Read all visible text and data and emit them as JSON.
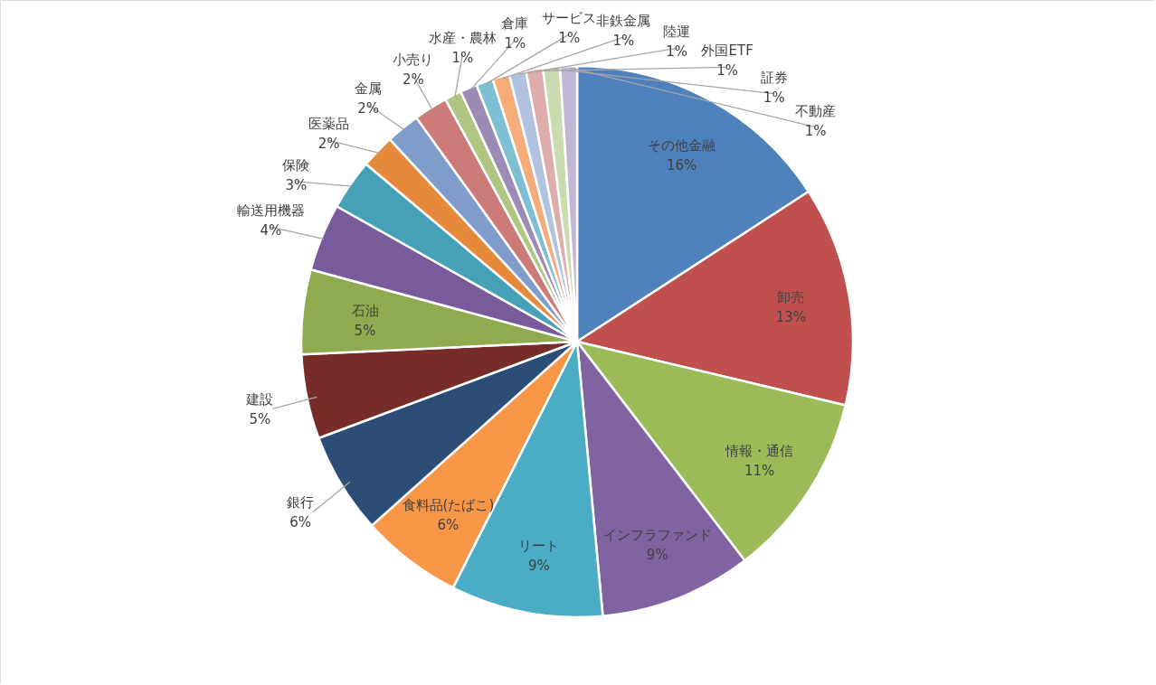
{
  "chart_data": {
    "type": "pie",
    "categories": [
      "その他金融",
      "卸売",
      "情報・通信",
      "インフラファンド",
      "リート",
      "食料品(たばこ)",
      "銀行",
      "建設",
      "石油",
      "輸送用機器",
      "保険",
      "医薬品",
      "金属",
      "小売り",
      "水産・農林",
      "倉庫",
      "サービス",
      "非鉄金属",
      "陸運",
      "外国ETF",
      "証券",
      "不動産"
    ],
    "values": [
      16,
      13,
      11,
      9,
      9,
      6,
      6,
      5,
      5,
      4,
      3,
      2,
      2,
      2,
      1,
      1,
      1,
      1,
      1,
      1,
      1,
      1
    ],
    "value_labels": [
      "16%",
      "13%",
      "11%",
      "9%",
      "9%",
      "6%",
      "6%",
      "5%",
      "5%",
      "4%",
      "3%",
      "2%",
      "2%",
      "2%",
      "1%",
      "1%",
      "1%",
      "1%",
      "1%",
      "1%",
      "1%",
      "1%"
    ],
    "colors": [
      "#4f81bd",
      "#c0504d",
      "#9bbb59",
      "#8064a2",
      "#4bacc6",
      "#f79646",
      "#2c4d75",
      "#772c2a",
      "#8faa4f",
      "#775b9b",
      "#46a0b8",
      "#e6893a",
      "#7f9ccb",
      "#cd7b79",
      "#aec682",
      "#9c8bb5",
      "#7fbfd4",
      "#f6ac78",
      "#b2c2e0",
      "#dcadab",
      "#cbdbb0",
      "#c2b6d5"
    ]
  }
}
